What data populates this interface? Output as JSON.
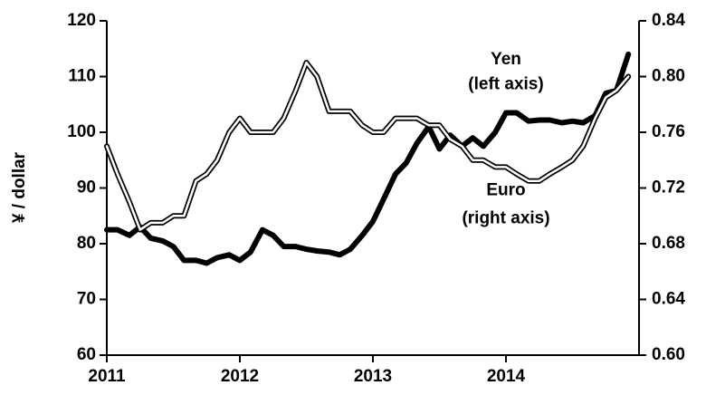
{
  "chart_data": {
    "type": "line",
    "y_label": "¥ / dollar",
    "annotations": [
      {
        "text": "Yen",
        "x": 2014.0,
        "y": 113
      },
      {
        "text": "(left axis)",
        "x": 2014.0,
        "y": 108.5
      },
      {
        "text": "Euro",
        "x": 2014.0,
        "y": 89.5
      },
      {
        "text": "(right axis)",
        "x": 2014.0,
        "y": 84.5
      }
    ],
    "x": [
      2011,
      2011.08,
      2011.17,
      2011.25,
      2011.33,
      2011.42,
      2011.5,
      2011.58,
      2011.67,
      2011.75,
      2011.83,
      2011.92,
      2012,
      2012.08,
      2012.17,
      2012.25,
      2012.33,
      2012.42,
      2012.5,
      2012.58,
      2012.67,
      2012.75,
      2012.83,
      2012.92,
      2013,
      2013.08,
      2013.17,
      2013.25,
      2013.33,
      2013.42,
      2013.5,
      2013.58,
      2013.67,
      2013.75,
      2013.83,
      2013.92,
      2014,
      2014.08,
      2014.17,
      2014.25,
      2014.33,
      2014.42,
      2014.5,
      2014.58,
      2014.67,
      2014.75,
      2014.83,
      2014.92
    ],
    "series": [
      {
        "name": "Yen",
        "color": "#000000",
        "style": "thick",
        "axis": "y",
        "values": [
          82.5,
          82.5,
          81.5,
          83,
          81,
          80.5,
          79.5,
          77,
          77,
          76.5,
          77.5,
          78,
          77,
          78.5,
          82.5,
          81.5,
          79.5,
          79.5,
          79,
          78.7,
          78.5,
          78,
          79,
          81.5,
          84,
          88,
          92.5,
          94.5,
          98,
          101,
          97,
          99.5,
          97.5,
          99,
          97.5,
          100,
          103.5,
          103.5,
          102,
          102.2,
          102.2,
          101.7,
          102,
          101.7,
          103,
          107,
          107.5,
          114
        ]
      },
      {
        "name": "Euro",
        "color": "#000000",
        "style": "double",
        "axis": "y2",
        "values": [
          0.75,
          0.73,
          0.71,
          0.69,
          0.695,
          0.695,
          0.7,
          0.7,
          0.725,
          0.73,
          0.74,
          0.76,
          0.77,
          0.76,
          0.76,
          0.76,
          0.77,
          0.79,
          0.81,
          0.8,
          0.775,
          0.775,
          0.775,
          0.765,
          0.76,
          0.76,
          0.77,
          0.77,
          0.77,
          0.765,
          0.765,
          0.755,
          0.75,
          0.74,
          0.74,
          0.735,
          0.735,
          0.73,
          0.725,
          0.725,
          0.73,
          0.735,
          0.74,
          0.75,
          0.77,
          0.785,
          0.79,
          0.8
        ]
      }
    ],
    "xlim": [
      2011,
      2015
    ],
    "xticks": [
      2011,
      2012,
      2013,
      2014
    ],
    "ylim": [
      60,
      120
    ],
    "yticks": [
      60,
      70,
      80,
      90,
      100,
      110,
      120
    ],
    "y2lim": [
      0.6,
      0.84
    ],
    "y2ticks": [
      {
        "value": 0.6,
        "label": "0.60"
      },
      0.64,
      0.68,
      0.72,
      0.76,
      {
        "value": 0.8,
        "label": "0.80"
      },
      0.84
    ],
    "grid": false
  }
}
